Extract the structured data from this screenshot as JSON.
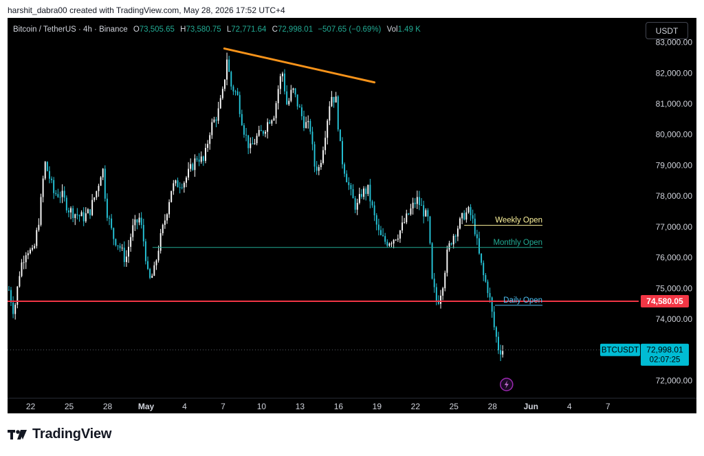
{
  "caption": "harshit_dabra00 created with TradingView.com, May 28, 2026 17:52 UTC+4",
  "legend": {
    "symbol": "Bitcoin / TetherUS · 4h · Binance",
    "o_label": "O",
    "o_value": "73,505.65",
    "h_label": "H",
    "h_value": "73,580.75",
    "l_label": "L",
    "l_value": "72,771.64",
    "c_label": "C",
    "c_value": "72,998.01",
    "change": "−507.65 (−0.69%)",
    "vol_label": "Vol",
    "vol_value": "1.49 K"
  },
  "currency_button": "USDT",
  "brand_text": "TradingView",
  "colors": {
    "up": "#ffffff",
    "down": "#26c6da",
    "trendline": "#f7931a",
    "support": "#f23645",
    "weekly": "#fff59d",
    "monthly": "#22ab94",
    "daily": "#4fc3f7"
  },
  "chart_data": {
    "type": "candlestick",
    "symbol": "BTCUSDT",
    "timeframe": "4h",
    "y_ticks": [
      "83,000.00",
      "82,000.00",
      "81,000.00",
      "80,000.00",
      "79,000.00",
      "78,000.00",
      "77,000.00",
      "76,000.00",
      "75,000.00",
      "74,000.00",
      "72,000.00"
    ],
    "y_tick_values": [
      83000,
      82000,
      81000,
      80000,
      79000,
      78000,
      77000,
      76000,
      75000,
      74000,
      72000
    ],
    "ylim": [
      71650,
      83350
    ],
    "x_ticks": [
      "22",
      "25",
      "28",
      "May",
      "4",
      "7",
      "10",
      "13",
      "16",
      "19",
      "22",
      "25",
      "28",
      "Jun",
      "4",
      "7"
    ],
    "x_tick_days": [
      -9,
      -6,
      -3,
      0,
      3,
      6,
      9,
      12,
      15,
      18,
      21,
      24,
      27,
      30,
      33,
      36
    ],
    "xlim": [
      -10.8,
      38.4
    ],
    "price_anchors": [
      [
        -10.7,
        74950
      ],
      [
        -10.3,
        74200
      ],
      [
        -9.8,
        75700
      ],
      [
        -9.3,
        76300
      ],
      [
        -8.8,
        76100
      ],
      [
        -8.3,
        77400
      ],
      [
        -7.9,
        79100
      ],
      [
        -7.6,
        78700
      ],
      [
        -7.2,
        78100
      ],
      [
        -6.6,
        78050
      ],
      [
        -6.0,
        77550
      ],
      [
        -5.4,
        77400
      ],
      [
        -4.9,
        77300
      ],
      [
        -4.4,
        77500
      ],
      [
        -3.8,
        78250
      ],
      [
        -3.4,
        79000
      ],
      [
        -3.1,
        77600
      ],
      [
        -2.6,
        76700
      ],
      [
        -2.1,
        76400
      ],
      [
        -1.6,
        75900
      ],
      [
        -1.1,
        76900
      ],
      [
        -0.5,
        77300
      ],
      [
        -0.1,
        76300
      ],
      [
        0.2,
        75200
      ],
      [
        0.6,
        75500
      ],
      [
        1.0,
        76400
      ],
      [
        1.5,
        77300
      ],
      [
        2.0,
        78300
      ],
      [
        2.5,
        78400
      ],
      [
        3.0,
        78500
      ],
      [
        3.5,
        78900
      ],
      [
        4.0,
        79300
      ],
      [
        4.5,
        79100
      ],
      [
        5.0,
        80200
      ],
      [
        5.6,
        80700
      ],
      [
        6.0,
        81400
      ],
      [
        6.3,
        82500
      ],
      [
        6.6,
        81600
      ],
      [
        7.1,
        81300
      ],
      [
        7.6,
        80200
      ],
      [
        8.1,
        79500
      ],
      [
        8.6,
        79900
      ],
      [
        9.1,
        80100
      ],
      [
        9.6,
        80500
      ],
      [
        10.0,
        80700
      ],
      [
        10.3,
        81500
      ],
      [
        10.6,
        82100
      ],
      [
        11.0,
        80900
      ],
      [
        11.4,
        81500
      ],
      [
        11.8,
        81000
      ],
      [
        12.3,
        80400
      ],
      [
        12.8,
        80200
      ],
      [
        13.1,
        79000
      ],
      [
        13.5,
        78900
      ],
      [
        13.9,
        79900
      ],
      [
        14.4,
        81300
      ],
      [
        14.8,
        81100
      ],
      [
        15.2,
        79300
      ],
      [
        15.7,
        78500
      ],
      [
        16.0,
        78000
      ],
      [
        16.4,
        77600
      ],
      [
        16.8,
        78100
      ],
      [
        17.3,
        78200
      ],
      [
        17.8,
        77300
      ],
      [
        18.2,
        76700
      ],
      [
        18.7,
        76500
      ],
      [
        19.2,
        76600
      ],
      [
        19.7,
        76800
      ],
      [
        20.2,
        77200
      ],
      [
        20.7,
        77600
      ],
      [
        21.1,
        77900
      ],
      [
        21.5,
        77600
      ],
      [
        22.0,
        77200
      ],
      [
        22.3,
        75200
      ],
      [
        22.7,
        74500
      ],
      [
        23.1,
        75100
      ],
      [
        23.5,
        76200
      ],
      [
        23.9,
        76700
      ],
      [
        24.3,
        77000
      ],
      [
        24.8,
        77400
      ],
      [
        25.2,
        77500
      ],
      [
        25.6,
        77000
      ],
      [
        25.9,
        76200
      ],
      [
        26.3,
        75400
      ],
      [
        26.7,
        74900
      ],
      [
        27.1,
        73800
      ],
      [
        27.5,
        73000
      ],
      [
        27.8,
        72998
      ]
    ],
    "lines": [
      {
        "kind": "trendline",
        "from": [
          6.1,
          82800
        ],
        "to": [
          17.8,
          81700
        ]
      },
      {
        "kind": "support",
        "y": 74580,
        "label": "74,580.05"
      },
      {
        "kind": "level",
        "name": "Weekly Open",
        "y": 77050,
        "from_day": 24.8,
        "to_day": 30.9
      },
      {
        "kind": "level",
        "name": "Monthly Open",
        "y": 76330,
        "from_day": 0.5,
        "to_day": 30.9
      },
      {
        "kind": "level",
        "name": "Daily Open",
        "y": 74450,
        "from_day": 27.2,
        "to_day": 30.9
      }
    ],
    "last_price": {
      "label": "BTCUSDT",
      "value": "72,998.01",
      "countdown": "02:07:25",
      "y": 72998
    }
  }
}
